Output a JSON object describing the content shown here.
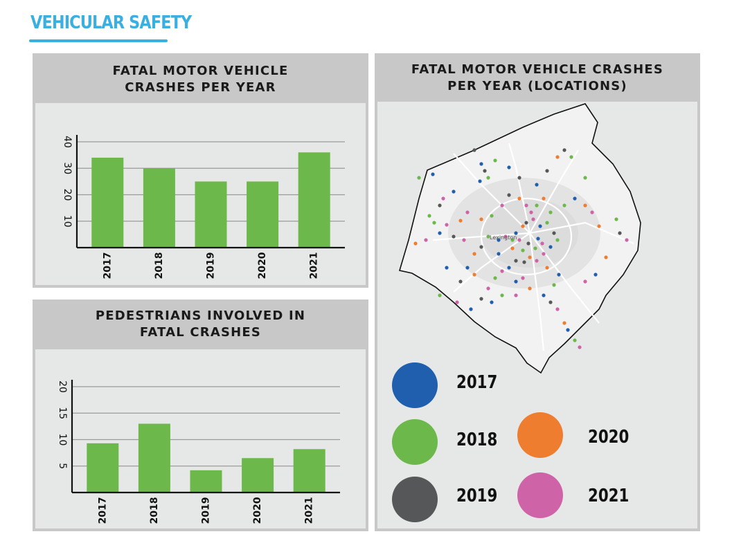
{
  "header": {
    "title": "VEHICULAR SAFETY"
  },
  "colors": {
    "bar": "#6db84a",
    "accent": "#3bb0e0",
    "grid": "#9a9a9a"
  },
  "chart_data": [
    {
      "type": "bar",
      "title": "FATAL MOTOR VEHICLE CRASHES PER YEAR",
      "title_lines": [
        "FATAL MOTOR VEHICLE",
        "CRASHES PER YEAR"
      ],
      "categories": [
        "2017",
        "2018",
        "2019",
        "2020",
        "2021"
      ],
      "values": [
        34,
        30,
        25,
        25,
        36
      ],
      "yticks": [
        "10",
        "20",
        "30",
        "40"
      ],
      "ylim": [
        0,
        40
      ],
      "grid": true
    },
    {
      "type": "bar",
      "title": "PEDESTRIANS INVOLVED IN FATAL CRASHES",
      "title_lines": [
        "PEDESTRIANS INVOLVED IN",
        "FATAL CRASHES"
      ],
      "categories": [
        "2017",
        "2018",
        "2019",
        "2020",
        "2021"
      ],
      "values": [
        9.3,
        13,
        4.2,
        6.5,
        8.2
      ],
      "yticks": [
        "5",
        "10",
        "15",
        "20"
      ],
      "ylim": [
        0,
        20
      ],
      "grid": true
    }
  ],
  "map": {
    "title_lines": [
      "FATAL MOTOR VEHICLE CRASHES",
      "PER YEAR (LOCATIONS)"
    ],
    "city_label": "Lexington",
    "legend": [
      {
        "year": "2017",
        "color": "#1f5fad"
      },
      {
        "year": "2018",
        "color": "#6db84a"
      },
      {
        "year": "2019",
        "color": "#555759"
      },
      {
        "year": "2020",
        "color": "#ee7d30"
      },
      {
        "year": "2021",
        "color": "#cf63a8"
      }
    ]
  }
}
